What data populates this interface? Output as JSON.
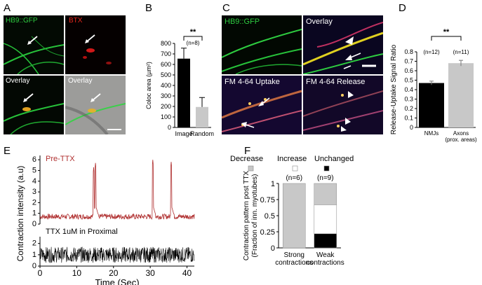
{
  "panels": {
    "A": "A",
    "B": "B",
    "C": "C",
    "D": "D",
    "E": "E",
    "F": "F"
  },
  "colors": {
    "green": "#2ecc40",
    "red": "#e8261c",
    "trace_red": "#b03030",
    "gray": "#c8c8c8",
    "black": "#000000"
  },
  "panelA": {
    "label_hb9": "HB9::GFP",
    "label_btx": "BTX",
    "label_overlay": "Overlay",
    "label_overlay2": "Overlay"
  },
  "panelC": {
    "label_hb9": "HB9::GFP",
    "label_overlay": "Overlay",
    "label_uptake": "FM 4-64 Uptake",
    "label_release": "FM 4-64 Release"
  },
  "chart_data": [
    {
      "id": "B",
      "type": "bar",
      "ylabel": "Coloc area (µm²)",
      "categories": [
        "Image",
        "Random"
      ],
      "values": [
        655,
        195
      ],
      "errors": [
        100,
        90
      ],
      "bar_colors": [
        "#000000",
        "#c8c8c8"
      ],
      "ylim": [
        0,
        800
      ],
      "yticks": [
        "0",
        "100",
        "200",
        "300",
        "400",
        "500",
        "600",
        "700",
        "800"
      ],
      "sig": "**",
      "n": "(n=8)"
    },
    {
      "id": "D",
      "type": "bar",
      "ylabel": "Release-Uptake Signal Ratio",
      "categories": [
        "NMJs",
        "Axons"
      ],
      "category_sub": [
        "",
        "(prox. areas)"
      ],
      "values": [
        0.47,
        0.68
      ],
      "errors": [
        0.02,
        0.03
      ],
      "bar_colors": [
        "#000000",
        "#c8c8c8"
      ],
      "ylim": [
        0,
        0.8
      ],
      "yticks": [
        "0",
        "0.1",
        "0.2",
        "0.3",
        "0.4",
        "0.5",
        "0.6",
        "0.7",
        "0.8"
      ],
      "sig": "**",
      "n_labels": [
        "(n=12)",
        "(n=11)"
      ]
    },
    {
      "id": "E",
      "type": "line",
      "xlabel": "Time (Sec)",
      "ylabel": "Contraction intensity (a.u)",
      "xticks": [
        "0",
        "10",
        "20",
        "30",
        "40"
      ],
      "xlim": [
        0,
        42
      ],
      "series": [
        {
          "name": "Pre-TTX",
          "yticks": [
            "0",
            "1",
            "2",
            "3",
            "4",
            "5",
            "6"
          ],
          "ylim": [
            0,
            6.4
          ],
          "baseline": 0.7,
          "peaks": [
            {
              "x": 14.6,
              "y": 5.3
            },
            {
              "x": 15.1,
              "y": 5.7
            },
            {
              "x": 30.7,
              "y": 6.0
            },
            {
              "x": 35.7,
              "y": 5.8
            }
          ]
        },
        {
          "name": "TTX 1uM in Proximal",
          "yticks": [
            "0",
            "1",
            "2"
          ],
          "ylim": [
            0,
            2.6
          ],
          "baseline": 1.0
        }
      ]
    },
    {
      "id": "F",
      "type": "bar",
      "stacked": true,
      "ylabel": "Contraction pattern post TTX",
      "ylabel2": "(Fraction of inn. myotubes)",
      "legend": [
        "Decrease",
        "Increase",
        "Unchanged"
      ],
      "legend_colors": [
        "#c8c8c8",
        "#ffffff",
        "#000000"
      ],
      "categories": [
        "Strong",
        "Weak"
      ],
      "category_sub": [
        "contractions",
        "contractions"
      ],
      "n_labels": [
        "(n=6)",
        "(n=9)"
      ],
      "series": [
        {
          "name": "Decrease",
          "values": [
            1.0,
            0.33
          ]
        },
        {
          "name": "Increase",
          "values": [
            0.0,
            0.45
          ]
        },
        {
          "name": "Unchanged",
          "values": [
            0.0,
            0.22
          ]
        }
      ],
      "ylim": [
        0,
        1
      ],
      "yticks": [
        "0",
        "0.25",
        "0.5",
        "0.75",
        "1"
      ]
    }
  ]
}
